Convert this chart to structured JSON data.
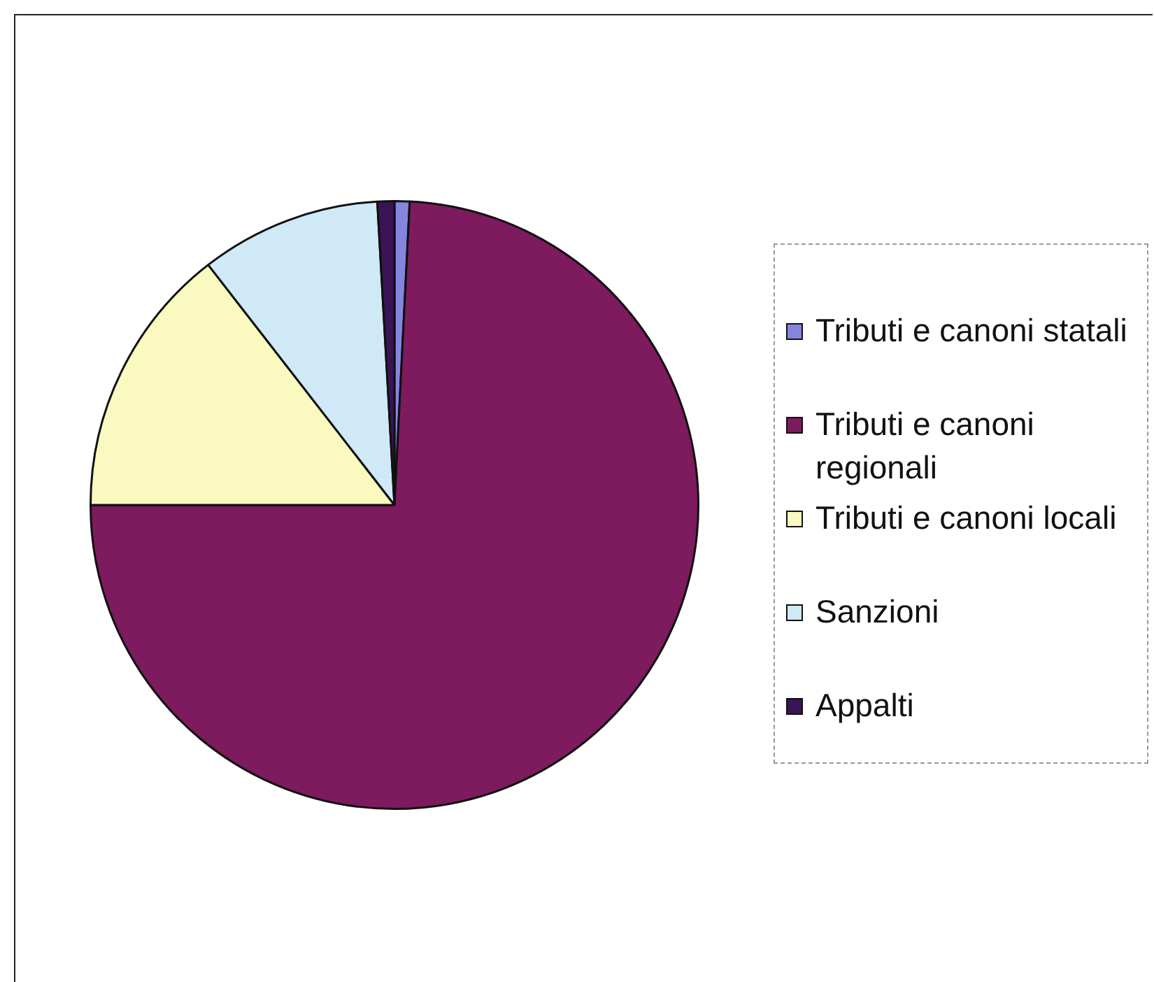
{
  "chart_data": {
    "type": "pie",
    "categories": [
      "Tributi e canoni statali",
      "Tributi e canoni regionali",
      "Tributi e canoni locali",
      "Sanzioni",
      "Appalti"
    ],
    "values": [
      0.8,
      74.2,
      14.5,
      9.6,
      0.9
    ],
    "colors": [
      "#8585e0",
      "#7e1a5e",
      "#fafac0",
      "#cfe9f7",
      "#3a1455"
    ],
    "legend": "right"
  }
}
